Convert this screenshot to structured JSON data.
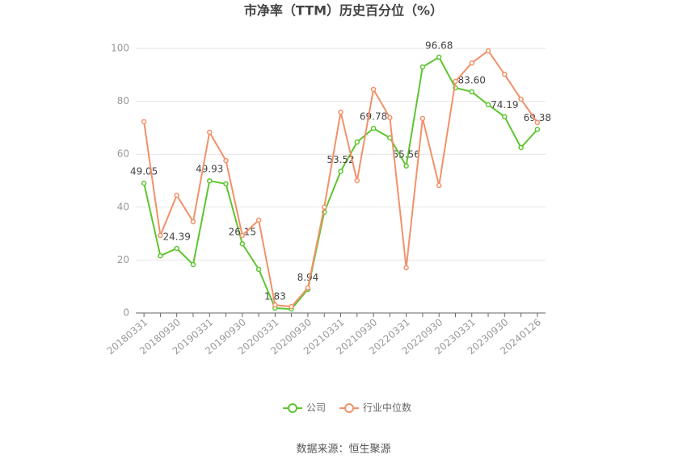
{
  "chart_data": {
    "type": "line",
    "title": "市净率（TTM）历史百分位（%）",
    "source": "数据来源：恒生聚源",
    "categories": [
      "20180331",
      null,
      "20180930",
      null,
      "20190331",
      null,
      "20190930",
      null,
      "20200331",
      null,
      "20200930",
      null,
      "20210331",
      null,
      "20210930",
      null,
      "20220331",
      null,
      "20220930",
      null,
      "20230331",
      null,
      "20230930",
      null,
      "20240126"
    ],
    "series": [
      {
        "name": "公司",
        "color": "#5ec52f",
        "values": [
          49.05,
          21.6,
          24.39,
          18.3,
          49.93,
          48.8,
          26.15,
          16.5,
          1.83,
          1.5,
          8.94,
          38.1,
          53.52,
          64.6,
          69.78,
          66.2,
          55.56,
          93.0,
          96.68,
          85.1,
          83.6,
          78.7,
          74.19,
          62.5,
          69.38
        ],
        "value_labels": [
          "49.05",
          null,
          "24.39",
          null,
          "49.93",
          null,
          "26.15",
          null,
          "1.83",
          null,
          "8.94",
          null,
          "53.52",
          null,
          "69.78",
          null,
          "55.56",
          null,
          "96.68",
          null,
          "83.60",
          null,
          "74.19",
          null,
          "69.38"
        ]
      },
      {
        "name": "行业中位数",
        "color": "#f2916a",
        "values": [
          72.3,
          29.3,
          44.5,
          34.5,
          68.3,
          57.6,
          29.3,
          35.1,
          3.0,
          2.4,
          9.5,
          40.0,
          75.9,
          50.0,
          84.5,
          73.8,
          17.1,
          73.5,
          48.2,
          87.5,
          94.5,
          99.1,
          90.2,
          80.8,
          72.0
        ]
      }
    ],
    "ylim": [
      0,
      100
    ],
    "yticks": [
      0,
      20,
      40,
      60,
      80,
      100
    ],
    "grid": true,
    "legend": "bottom"
  }
}
